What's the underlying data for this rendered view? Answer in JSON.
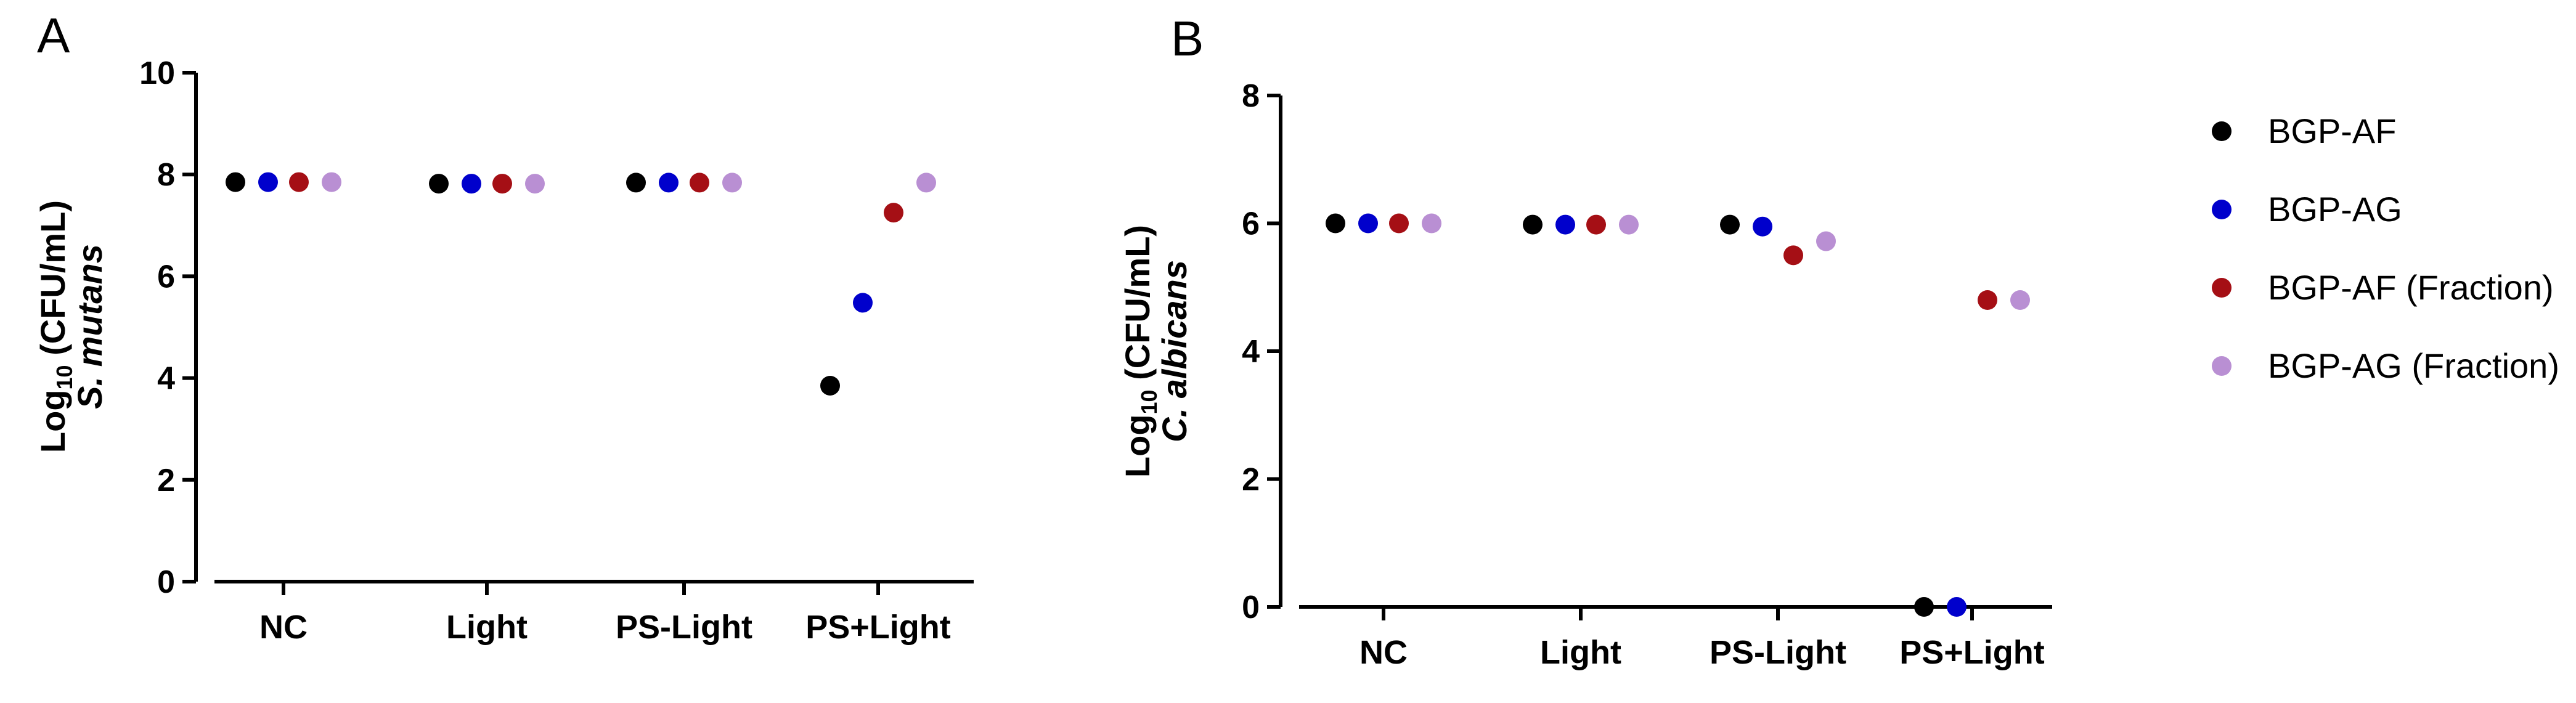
{
  "series_colors": {
    "BGP-AF": "#000000",
    "BGP-AG": "#0000cc",
    "BGP-AF (Fraction)": "#a50f15",
    "BGP-AG (Fraction)": "#b98fd3"
  },
  "legend": [
    "BGP-AF",
    "BGP-AG",
    "BGP-AF (Fraction)",
    "BGP-AG (Fraction)"
  ],
  "chart_data": [
    {
      "panel": "A",
      "type": "scatter",
      "ylabel_main": "Log",
      "ylabel_sub": "10",
      "ylabel_rest": " (CFU/mL)",
      "ylabel_organism": "S. mutans",
      "ylim": [
        0,
        10
      ],
      "yticks": [
        0,
        2,
        4,
        6,
        8,
        10
      ],
      "categories": [
        "NC",
        "Light",
        "PS-Light",
        "PS+Light"
      ],
      "series": [
        {
          "name": "BGP-AF",
          "values": [
            7.85,
            7.82,
            7.84,
            3.85
          ]
        },
        {
          "name": "BGP-AG",
          "values": [
            7.85,
            7.82,
            7.84,
            5.48
          ]
        },
        {
          "name": "BGP-AF (Fraction)",
          "values": [
            7.85,
            7.82,
            7.84,
            7.25
          ]
        },
        {
          "name": "BGP-AG (Fraction)",
          "values": [
            7.85,
            7.82,
            7.84,
            7.84
          ]
        }
      ]
    },
    {
      "panel": "B",
      "type": "scatter",
      "ylabel_main": "Log",
      "ylabel_sub": "10",
      "ylabel_rest": " (CFU/mL)",
      "ylabel_organism": "C. albicans",
      "ylim": [
        0,
        8
      ],
      "yticks": [
        0,
        2,
        4,
        6,
        8
      ],
      "categories": [
        "NC",
        "Light",
        "PS-Light",
        "PS+Light"
      ],
      "series": [
        {
          "name": "BGP-AF",
          "values": [
            6.0,
            5.98,
            5.98,
            0.0
          ]
        },
        {
          "name": "BGP-AG",
          "values": [
            6.0,
            5.98,
            5.95,
            0.0
          ]
        },
        {
          "name": "BGP-AF (Fraction)",
          "values": [
            6.0,
            5.98,
            5.5,
            4.8
          ]
        },
        {
          "name": "BGP-AG (Fraction)",
          "values": [
            6.0,
            5.98,
            5.72,
            4.8
          ]
        }
      ]
    }
  ]
}
